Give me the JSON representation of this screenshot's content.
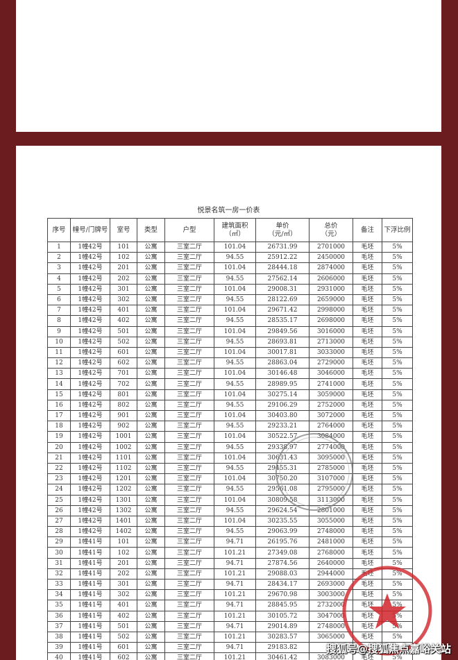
{
  "document": {
    "title": "悦景名筑一房一价表",
    "headers": [
      "序号",
      "幢号/门牌号",
      "室号",
      "类型",
      "户型",
      "建筑面积\n（㎡）",
      "单价\n（元/㎡）",
      "总价\n（元）",
      "备注",
      "下浮比例"
    ],
    "rows": [
      [
        "1",
        "1幢42号",
        "101",
        "公寓",
        "三室二厅",
        "101.04",
        "26731.99",
        "2701000",
        "毛坯",
        "5%"
      ],
      [
        "2",
        "1幢42号",
        "102",
        "公寓",
        "三室二厅",
        "94.55",
        "25912.22",
        "2450000",
        "毛坯",
        "5%"
      ],
      [
        "3",
        "1幢42号",
        "201",
        "公寓",
        "三室二厅",
        "101.04",
        "28444.18",
        "2874000",
        "毛坯",
        "5%"
      ],
      [
        "4",
        "1幢42号",
        "202",
        "公寓",
        "三室二厅",
        "94.55",
        "27562.14",
        "2606000",
        "毛坯",
        "5%"
      ],
      [
        "5",
        "1幢42号",
        "301",
        "公寓",
        "三室二厅",
        "101.04",
        "29008.31",
        "2931000",
        "毛坯",
        "5%"
      ],
      [
        "6",
        "1幢42号",
        "302",
        "公寓",
        "三室二厅",
        "94.55",
        "28122.69",
        "2659000",
        "毛坯",
        "5%"
      ],
      [
        "7",
        "1幢42号",
        "401",
        "公寓",
        "三室二厅",
        "101.04",
        "29671.42",
        "2998000",
        "毛坯",
        "5%"
      ],
      [
        "8",
        "1幢42号",
        "402",
        "公寓",
        "三室二厅",
        "94.55",
        "28535.17",
        "2698000",
        "毛坯",
        "5%"
      ],
      [
        "9",
        "1幢42号",
        "501",
        "公寓",
        "三室二厅",
        "101.04",
        "29849.56",
        "3016000",
        "毛坯",
        "5%"
      ],
      [
        "10",
        "1幢42号",
        "502",
        "公寓",
        "三室二厅",
        "94.55",
        "28693.81",
        "2713000",
        "毛坯",
        "5%"
      ],
      [
        "11",
        "1幢42号",
        "601",
        "公寓",
        "三室二厅",
        "101.04",
        "30017.81",
        "3033000",
        "毛坯",
        "5%"
      ],
      [
        "12",
        "1幢42号",
        "602",
        "公寓",
        "三室二厅",
        "94.55",
        "28863.04",
        "2729000",
        "毛坯",
        "5%"
      ],
      [
        "13",
        "1幢42号",
        "701",
        "公寓",
        "三室二厅",
        "101.04",
        "30146.48",
        "3046000",
        "毛坯",
        "5%"
      ],
      [
        "14",
        "1幢42号",
        "702",
        "公寓",
        "三室二厅",
        "94.55",
        "28989.95",
        "2741000",
        "毛坯",
        "5%"
      ],
      [
        "15",
        "1幢42号",
        "801",
        "公寓",
        "三室二厅",
        "101.04",
        "30275.14",
        "3059000",
        "毛坯",
        "5%"
      ],
      [
        "16",
        "1幢42号",
        "802",
        "公寓",
        "三室二厅",
        "94.55",
        "29106.29",
        "2752000",
        "毛坯",
        "5%"
      ],
      [
        "17",
        "1幢42号",
        "901",
        "公寓",
        "三室二厅",
        "101.04",
        "30403.80",
        "3072000",
        "毛坯",
        "5%"
      ],
      [
        "18",
        "1幢42号",
        "902",
        "公寓",
        "三室二厅",
        "94.55",
        "29233.21",
        "2764000",
        "毛坯",
        "5%"
      ],
      [
        "19",
        "1幢42号",
        "1001",
        "公寓",
        "三室二厅",
        "101.04",
        "30522.57",
        "3084000",
        "毛坯",
        "5%"
      ],
      [
        "20",
        "1幢42号",
        "1002",
        "公寓",
        "三室二厅",
        "94.55",
        "29338.97",
        "2774000",
        "毛坯",
        "5%"
      ],
      [
        "21",
        "1幢42号",
        "1101",
        "公寓",
        "三室二厅",
        "101.04",
        "30631.43",
        "3095000",
        "毛坯",
        "5%"
      ],
      [
        "22",
        "1幢42号",
        "1102",
        "公寓",
        "三室二厅",
        "94.55",
        "29455.31",
        "2785000",
        "毛坯",
        "5%"
      ],
      [
        "23",
        "1幢42号",
        "1201",
        "公寓",
        "三室二厅",
        "101.04",
        "30750.20",
        "3107000",
        "毛坯",
        "5%"
      ],
      [
        "24",
        "1幢42号",
        "1202",
        "公寓",
        "三室二厅",
        "94.55",
        "29561.08",
        "2795000",
        "毛坯",
        "5%"
      ],
      [
        "25",
        "1幢42号",
        "1301",
        "公寓",
        "三室二厅",
        "101.04",
        "30809.58",
        "3113000",
        "毛坯",
        "5%"
      ],
      [
        "26",
        "1幢42号",
        "1302",
        "公寓",
        "三室二厅",
        "94.55",
        "29624.54",
        "2801000",
        "毛坯",
        "5%"
      ],
      [
        "27",
        "1幢42号",
        "1401",
        "公寓",
        "三室二厅",
        "101.04",
        "30235.55",
        "3055000",
        "毛坯",
        "5%"
      ],
      [
        "28",
        "1幢42号",
        "1402",
        "公寓",
        "三室二厅",
        "94.55",
        "29063.99",
        "2748000",
        "毛坯",
        "5%"
      ],
      [
        "29",
        "1幢41号",
        "101",
        "公寓",
        "三室二厅",
        "94.71",
        "26195.76",
        "2481000",
        "毛坯",
        "5%"
      ],
      [
        "30",
        "1幢41号",
        "102",
        "公寓",
        "三室二厅",
        "101.21",
        "27349.08",
        "2768000",
        "毛坯",
        "5%"
      ],
      [
        "31",
        "1幢41号",
        "201",
        "公寓",
        "三室二厅",
        "94.71",
        "27874.56",
        "2640000",
        "毛坯",
        "5%"
      ],
      [
        "32",
        "1幢41号",
        "202",
        "公寓",
        "三室二厅",
        "101.21",
        "29088.03",
        "2944000",
        "毛坯",
        "5%"
      ],
      [
        "33",
        "1幢41号",
        "301",
        "公寓",
        "三室二厅",
        "94.71",
        "28434.17",
        "2693000",
        "毛坯",
        "5%"
      ],
      [
        "34",
        "1幢41号",
        "302",
        "公寓",
        "三室二厅",
        "101.21",
        "29670.98",
        "3003000",
        "毛坯",
        "5%"
      ],
      [
        "35",
        "1幢41号",
        "401",
        "公寓",
        "三室二厅",
        "94.71",
        "28845.95",
        "2732000",
        "毛坯",
        "5%"
      ],
      [
        "36",
        "1幢41号",
        "402",
        "公寓",
        "三室二厅",
        "101.21",
        "30105.72",
        "3047000",
        "毛坯",
        "5%"
      ],
      [
        "37",
        "1幢41号",
        "501",
        "公寓",
        "三室二厅",
        "94.71",
        "29014.89",
        "2748000",
        "毛坯",
        "5%"
      ],
      [
        "38",
        "1幢41号",
        "502",
        "公寓",
        "三室二厅",
        "101.21",
        "30283.57",
        "3065000",
        "毛坯",
        "5%"
      ],
      [
        "39",
        "1幢41号",
        "601",
        "公寓",
        "三室二厅",
        "94.71",
        "29183.82",
        "",
        "",
        ""
      ],
      [
        "40",
        "1幢41号",
        "602",
        "公寓",
        "三室二厅",
        "101.21",
        "30461.42",
        "3083000",
        "毛坯",
        "5%"
      ]
    ]
  },
  "watermark": "搜狐号@搜狐焦点嘉峪关站",
  "colors": {
    "background": "#6b1c1f",
    "stamp_red": "#d0242b",
    "stamp_gray": "#777777"
  }
}
